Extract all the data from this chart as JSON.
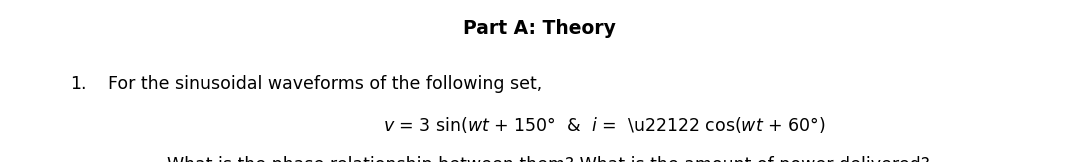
{
  "background_color": "#ffffff",
  "title": "Part A: Theory",
  "title_fontsize": 13.5,
  "title_fontweight": "bold",
  "line1_number": "1.",
  "line1_text": "For the sinusoidal waveforms of the following set,",
  "line1_fontsize": 12.5,
  "line2_fontsize": 12.5,
  "line3_text": "What is the phase relationship between them? What is the amount of power delivered?",
  "line3_fontsize": 12.5,
  "font_family": "DejaVu Sans"
}
